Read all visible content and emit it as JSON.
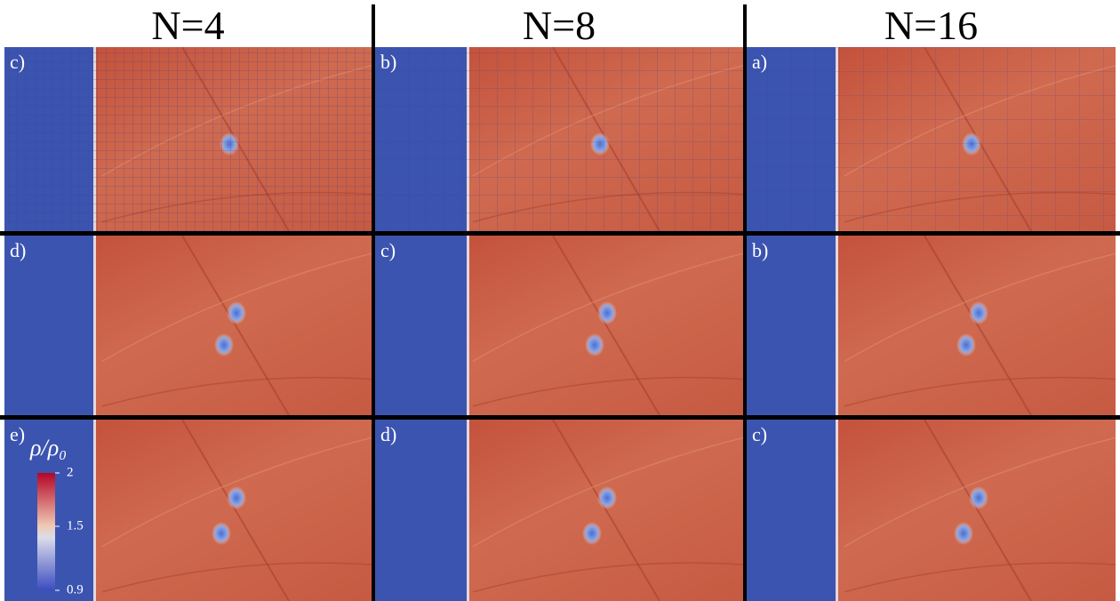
{
  "columns": [
    {
      "title": "N=4",
      "panels": [
        {
          "label": "c)"
        },
        {
          "label": "d)"
        },
        {
          "label": "e)"
        }
      ]
    },
    {
      "title": "N=8",
      "panels": [
        {
          "label": "b)"
        },
        {
          "label": "c)"
        },
        {
          "label": "d)"
        }
      ]
    },
    {
      "title": "N=16",
      "panels": [
        {
          "label": "a)"
        },
        {
          "label": "b)"
        },
        {
          "label": "c)"
        }
      ]
    }
  ],
  "colorbar": {
    "label": "ρ/ρ₀",
    "ticks": [
      0.9,
      1.5,
      2
    ]
  }
}
